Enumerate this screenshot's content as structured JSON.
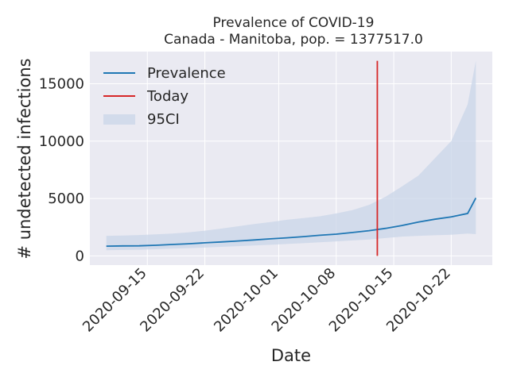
{
  "chart_data": {
    "type": "line",
    "title": "Prevalence of COVID-19",
    "subtitle": "Canada - Manitoba, pop. = 1377517.0",
    "xlabel": "Date",
    "ylabel": "# undetected infections",
    "x_tick_labels": [
      "2020-09-15",
      "2020-09-22",
      "2020-10-01",
      "2020-10-08",
      "2020-10-15",
      "2020-10-22"
    ],
    "x_tick_dates": [
      "2020-09-15",
      "2020-09-22",
      "2020-10-01",
      "2020-10-08",
      "2020-10-15",
      "2020-10-22"
    ],
    "y_ticks": [
      0,
      5000,
      10000,
      15000
    ],
    "ylim": [
      -800,
      17800
    ],
    "xlim": [
      "2020-09-08",
      "2020-10-27"
    ],
    "grid": true,
    "legend": {
      "position": "top-left",
      "entries": [
        {
          "label": "Prevalence",
          "color": "#1f77b4",
          "kind": "line"
        },
        {
          "label": "Today",
          "color": "#d62728",
          "kind": "line"
        },
        {
          "label": "95CI",
          "color": "#c9d6e8",
          "kind": "band"
        }
      ]
    },
    "today": "2020-10-13",
    "series": [
      {
        "name": "Prevalence",
        "color": "#1f77b4",
        "x": [
          "2020-09-10",
          "2020-09-12",
          "2020-09-14",
          "2020-09-16",
          "2020-09-18",
          "2020-09-20",
          "2020-09-22",
          "2020-09-24",
          "2020-09-26",
          "2020-09-28",
          "2020-09-30",
          "2020-10-02",
          "2020-10-04",
          "2020-10-06",
          "2020-10-08",
          "2020-10-10",
          "2020-10-12",
          "2020-10-14",
          "2020-10-16",
          "2020-10-18",
          "2020-10-20",
          "2020-10-22",
          "2020-10-24",
          "2020-10-25"
        ],
        "y": [
          850,
          870,
          880,
          930,
          1000,
          1060,
          1140,
          1220,
          1300,
          1390,
          1490,
          1580,
          1680,
          1800,
          1900,
          2040,
          2200,
          2400,
          2650,
          2950,
          3200,
          3400,
          3700,
          5050
        ]
      },
      {
        "name": "95CI",
        "color": "#c9d6e8",
        "x": [
          "2020-09-10",
          "2020-09-12",
          "2020-09-14",
          "2020-09-16",
          "2020-09-18",
          "2020-09-20",
          "2020-09-22",
          "2020-09-24",
          "2020-09-26",
          "2020-09-28",
          "2020-09-30",
          "2020-10-02",
          "2020-10-04",
          "2020-10-06",
          "2020-10-08",
          "2020-10-10",
          "2020-10-12",
          "2020-10-14",
          "2020-10-16",
          "2020-10-18",
          "2020-10-20",
          "2020-10-22",
          "2020-10-24",
          "2020-10-25"
        ],
        "lower": [
          500,
          520,
          540,
          580,
          630,
          680,
          730,
          790,
          850,
          910,
          970,
          1040,
          1110,
          1190,
          1270,
          1350,
          1430,
          1560,
          1680,
          1750,
          1800,
          1850,
          1950,
          1900
        ],
        "upper": [
          1750,
          1780,
          1820,
          1880,
          1950,
          2050,
          2200,
          2380,
          2580,
          2780,
          2950,
          3150,
          3300,
          3450,
          3700,
          4000,
          4450,
          5150,
          6050,
          7000,
          8500,
          10000,
          13200,
          17000
        ]
      }
    ]
  }
}
